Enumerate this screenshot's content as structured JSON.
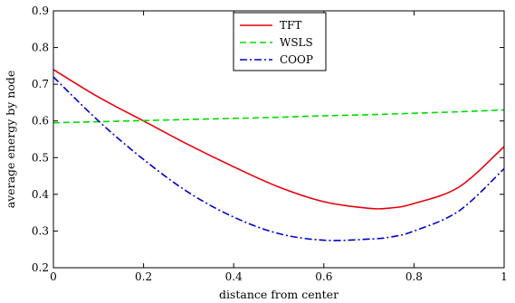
{
  "chart_data": {
    "type": "line",
    "xlabel": "distance from center",
    "ylabel": "average energy by node",
    "xlim": [
      0,
      1
    ],
    "ylim": [
      0.2,
      0.9
    ],
    "xticks": [
      0,
      0.2,
      0.4,
      0.6,
      0.8,
      1
    ],
    "xtick_labels": [
      "0",
      "0.2",
      "0.4",
      "0.6",
      "0.8",
      "1"
    ],
    "yticks": [
      0.2,
      0.3,
      0.4,
      0.5,
      0.6,
      0.7,
      0.8,
      0.9
    ],
    "ytick_labels": [
      "0.2",
      "0.3",
      "0.4",
      "0.5",
      "0.6",
      "0.7",
      "0.8",
      "0.9"
    ],
    "grid": false,
    "legend_position": "top-center",
    "x": [
      0,
      0.1,
      0.2,
      0.3,
      0.4,
      0.5,
      0.6,
      0.7,
      0.75,
      0.8,
      0.9,
      1.0
    ],
    "series": [
      {
        "name": "TFT",
        "color": "#e8000b",
        "style": "solid",
        "values": [
          0.74,
          0.665,
          0.6,
          0.535,
          0.475,
          0.42,
          0.38,
          0.362,
          0.363,
          0.375,
          0.42,
          0.53
        ]
      },
      {
        "name": "WSLS",
        "color": "#00dd00",
        "style": "dashed",
        "values": [
          0.595,
          0.598,
          0.601,
          0.604,
          0.607,
          0.61,
          0.614,
          0.617,
          0.619,
          0.621,
          0.625,
          0.63
        ]
      },
      {
        "name": "COOP",
        "color": "#0000cc",
        "style": "dashdot",
        "values": [
          0.72,
          0.6,
          0.495,
          0.405,
          0.338,
          0.293,
          0.275,
          0.278,
          0.284,
          0.3,
          0.355,
          0.47
        ]
      }
    ]
  }
}
